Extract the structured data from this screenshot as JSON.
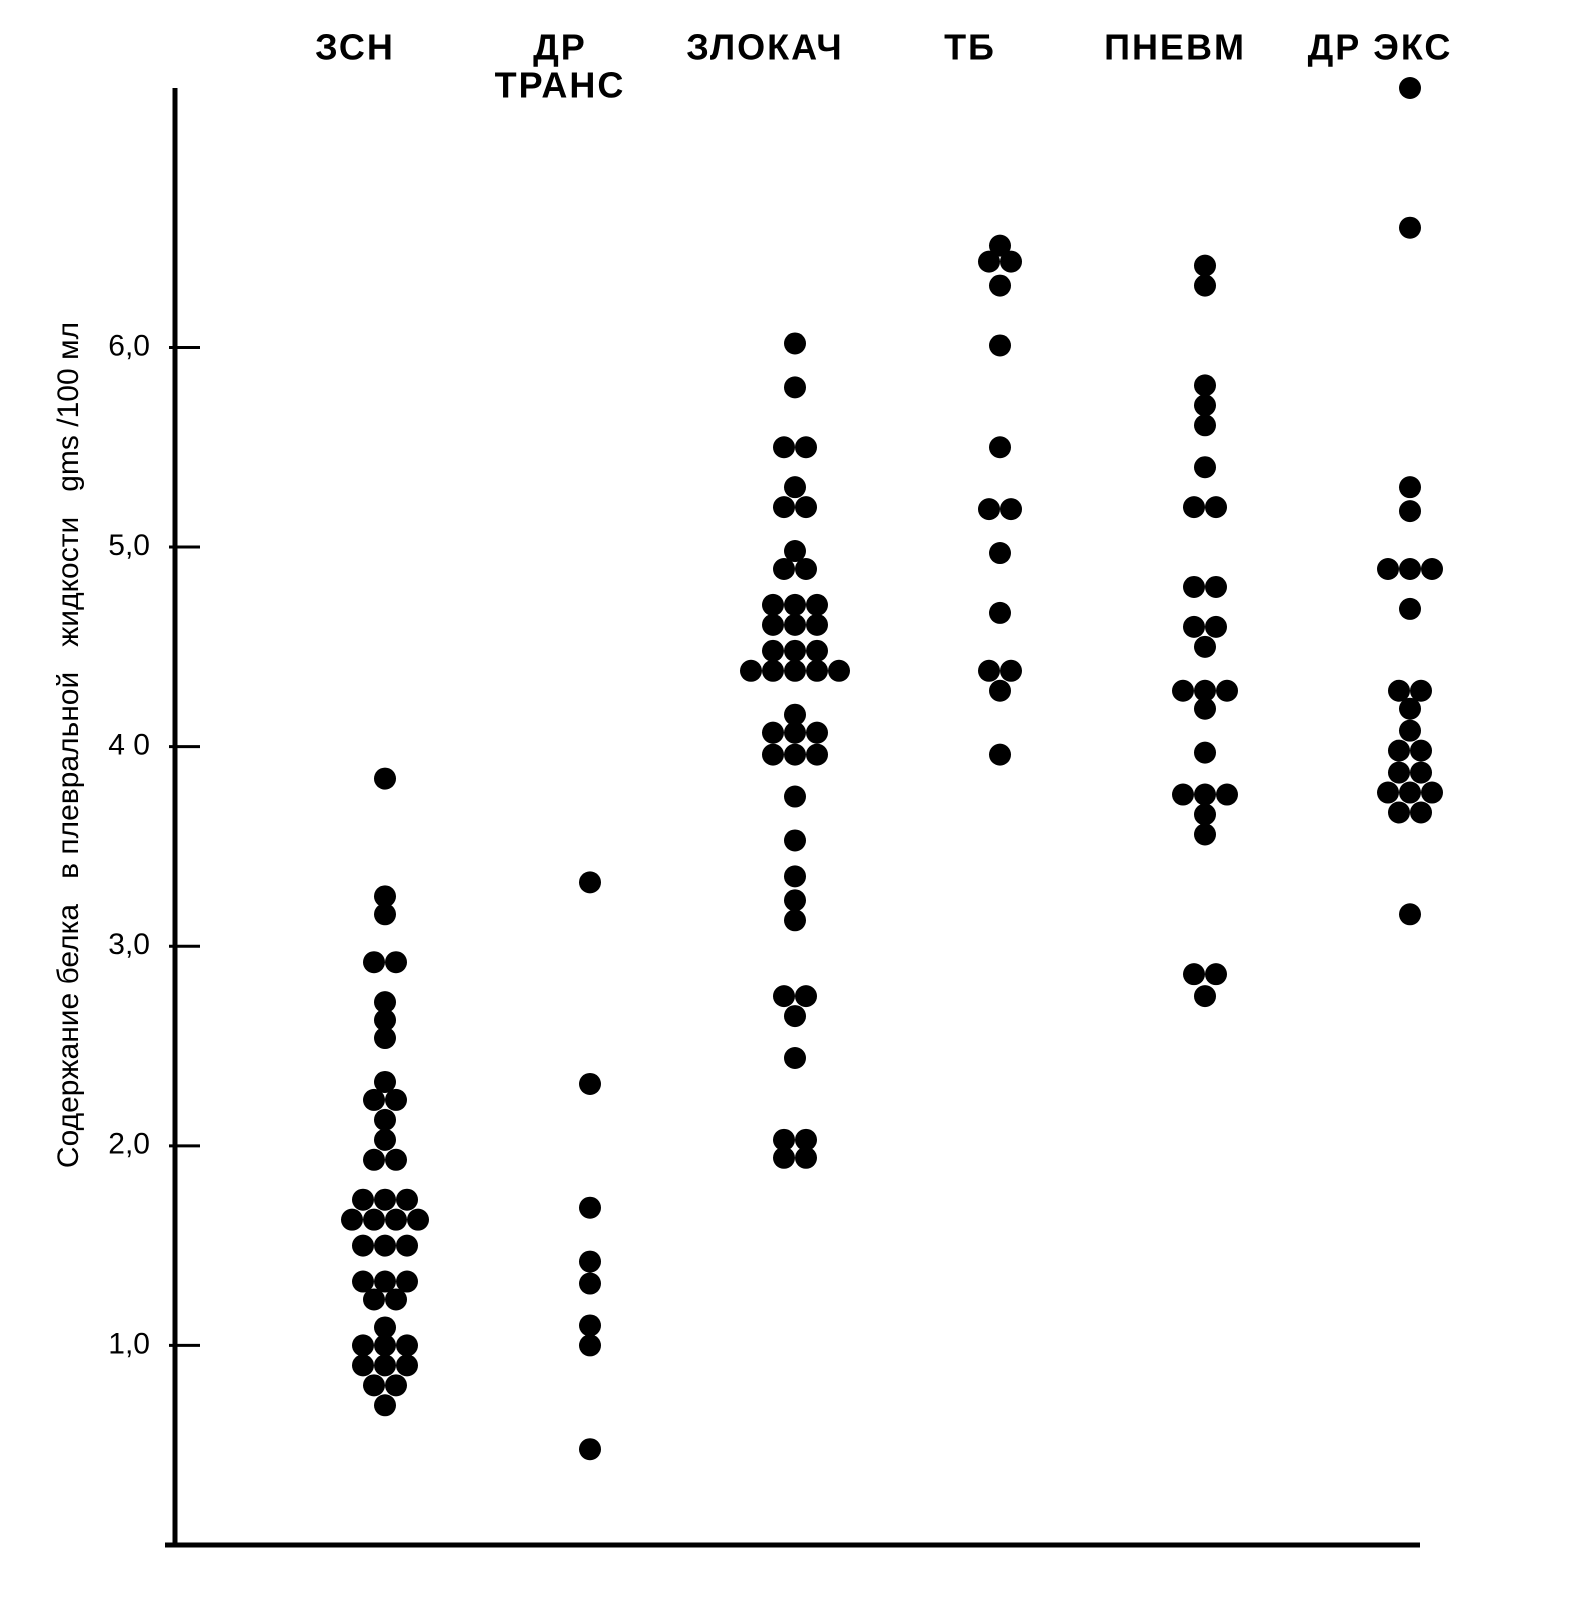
{
  "chart_data": {
    "type": "strip",
    "y_label": "Содержание белка   в плевральной   жидкости   gms /100 мл",
    "ylim": [
      0,
      7.3
    ],
    "yticks": [
      {
        "value": 1,
        "label": "1,0"
      },
      {
        "value": 2,
        "label": "2,0"
      },
      {
        "value": 3,
        "label": "3,0"
      },
      {
        "value": 4,
        "label": "4 0"
      },
      {
        "value": 5,
        "label": "5,0"
      },
      {
        "value": 6,
        "label": "6,0"
      }
    ],
    "color": "#000000",
    "categories": [
      [
        "ЗСН"
      ],
      [
        "ДР",
        "ТРАНС"
      ],
      [
        "ЗЛОКАЧ"
      ],
      [
        "ТБ"
      ],
      [
        "ПНЕВМ"
      ],
      [
        "ДР ЭКС"
      ]
    ],
    "values": [
      [
        3.84,
        3.25,
        3.16,
        2.92,
        2.92,
        2.72,
        2.63,
        2.54,
        2.32,
        2.23,
        2.23,
        2.13,
        2.03,
        1.93,
        1.93,
        1.73,
        1.73,
        1.73,
        1.63,
        1.63,
        1.63,
        1.63,
        1.5,
        1.5,
        1.5,
        1.32,
        1.32,
        1.32,
        1.23,
        1.23,
        1.09,
        1.0,
        1.0,
        1.0,
        0.9,
        0.9,
        0.9,
        0.8,
        0.8,
        0.7
      ],
      [
        3.32,
        2.31,
        1.69,
        1.42,
        1.31,
        1.1,
        1.0,
        0.48
      ],
      [
        6.02,
        5.8,
        5.5,
        5.5,
        5.3,
        5.2,
        5.2,
        4.98,
        4.89,
        4.89,
        4.71,
        4.71,
        4.71,
        4.61,
        4.61,
        4.61,
        4.48,
        4.48,
        4.48,
        4.38,
        4.38,
        4.38,
        4.38,
        4.38,
        4.16,
        4.07,
        4.07,
        4.07,
        3.96,
        3.96,
        3.96,
        3.75,
        3.53,
        3.35,
        3.23,
        3.13,
        2.75,
        2.75,
        2.65,
        2.44,
        2.03,
        2.03,
        1.94,
        1.94
      ],
      [
        6.51,
        6.43,
        6.43,
        6.31,
        6.01,
        5.5,
        5.19,
        5.19,
        4.97,
        4.67,
        4.38,
        4.38,
        4.28,
        3.96
      ],
      [
        6.41,
        6.31,
        5.81,
        5.71,
        5.61,
        5.4,
        5.2,
        5.2,
        4.8,
        4.8,
        4.6,
        4.6,
        4.5,
        4.28,
        4.28,
        4.28,
        4.19,
        3.97,
        3.76,
        3.76,
        3.76,
        3.66,
        3.56,
        2.86,
        2.86,
        2.75
      ],
      [
        7.3,
        6.6,
        5.3,
        5.18,
        4.89,
        4.89,
        4.89,
        4.69,
        4.28,
        4.28,
        4.19,
        4.08,
        3.98,
        3.98,
        3.87,
        3.87,
        3.77,
        3.77,
        3.77,
        3.67,
        3.67,
        3.16
      ]
    ]
  }
}
